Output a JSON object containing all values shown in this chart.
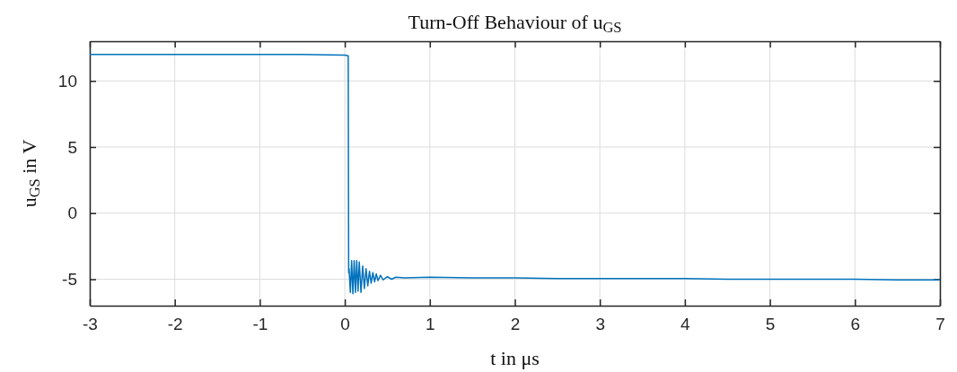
{
  "chart_data": {
    "type": "line",
    "title": "Turn-Off Behaviour of u$_{GS}$",
    "xlabel": "t in μs",
    "ylabel": "u$_{GS}$ in V",
    "xlim": [
      -3,
      7
    ],
    "ylim": [
      -7,
      13
    ],
    "xticks": [
      -3,
      -2,
      -1,
      0,
      1,
      2,
      3,
      4,
      5,
      6,
      7
    ],
    "yticks": [
      -5,
      0,
      5,
      10
    ],
    "grid": true,
    "series": [
      {
        "color": "#0072bd",
        "x": [
          -3,
          -2.5,
          -2,
          -1.5,
          -1,
          -0.5,
          0,
          0.04,
          0.045,
          0.05,
          0.065,
          0.08,
          0.095,
          0.11,
          0.125,
          0.14,
          0.155,
          0.17,
          0.19,
          0.21,
          0.23,
          0.25,
          0.27,
          0.29,
          0.31,
          0.33,
          0.35,
          0.37,
          0.39,
          0.42,
          0.45,
          0.5,
          0.55,
          0.6,
          0.7,
          1,
          1.5,
          2,
          2.5,
          3,
          3.5,
          4,
          4.5,
          5,
          5.5,
          6,
          6.5,
          7
        ],
        "values": [
          12,
          12,
          12,
          12,
          12,
          12,
          11.95,
          11.9,
          -4.5,
          -4.2,
          -6,
          -3.6,
          -6.1,
          -3.6,
          -6,
          -3.6,
          -5.9,
          -3.7,
          -6,
          -4,
          -5.7,
          -4.2,
          -5.5,
          -4.4,
          -5.3,
          -4.5,
          -5.2,
          -4.6,
          -5.1,
          -4.7,
          -5.05,
          -4.8,
          -5,
          -4.85,
          -4.9,
          -4.85,
          -4.9,
          -4.9,
          -4.95,
          -4.95,
          -4.95,
          -4.95,
          -5,
          -5,
          -5,
          -5,
          -5.05,
          -5.05
        ]
      }
    ]
  }
}
